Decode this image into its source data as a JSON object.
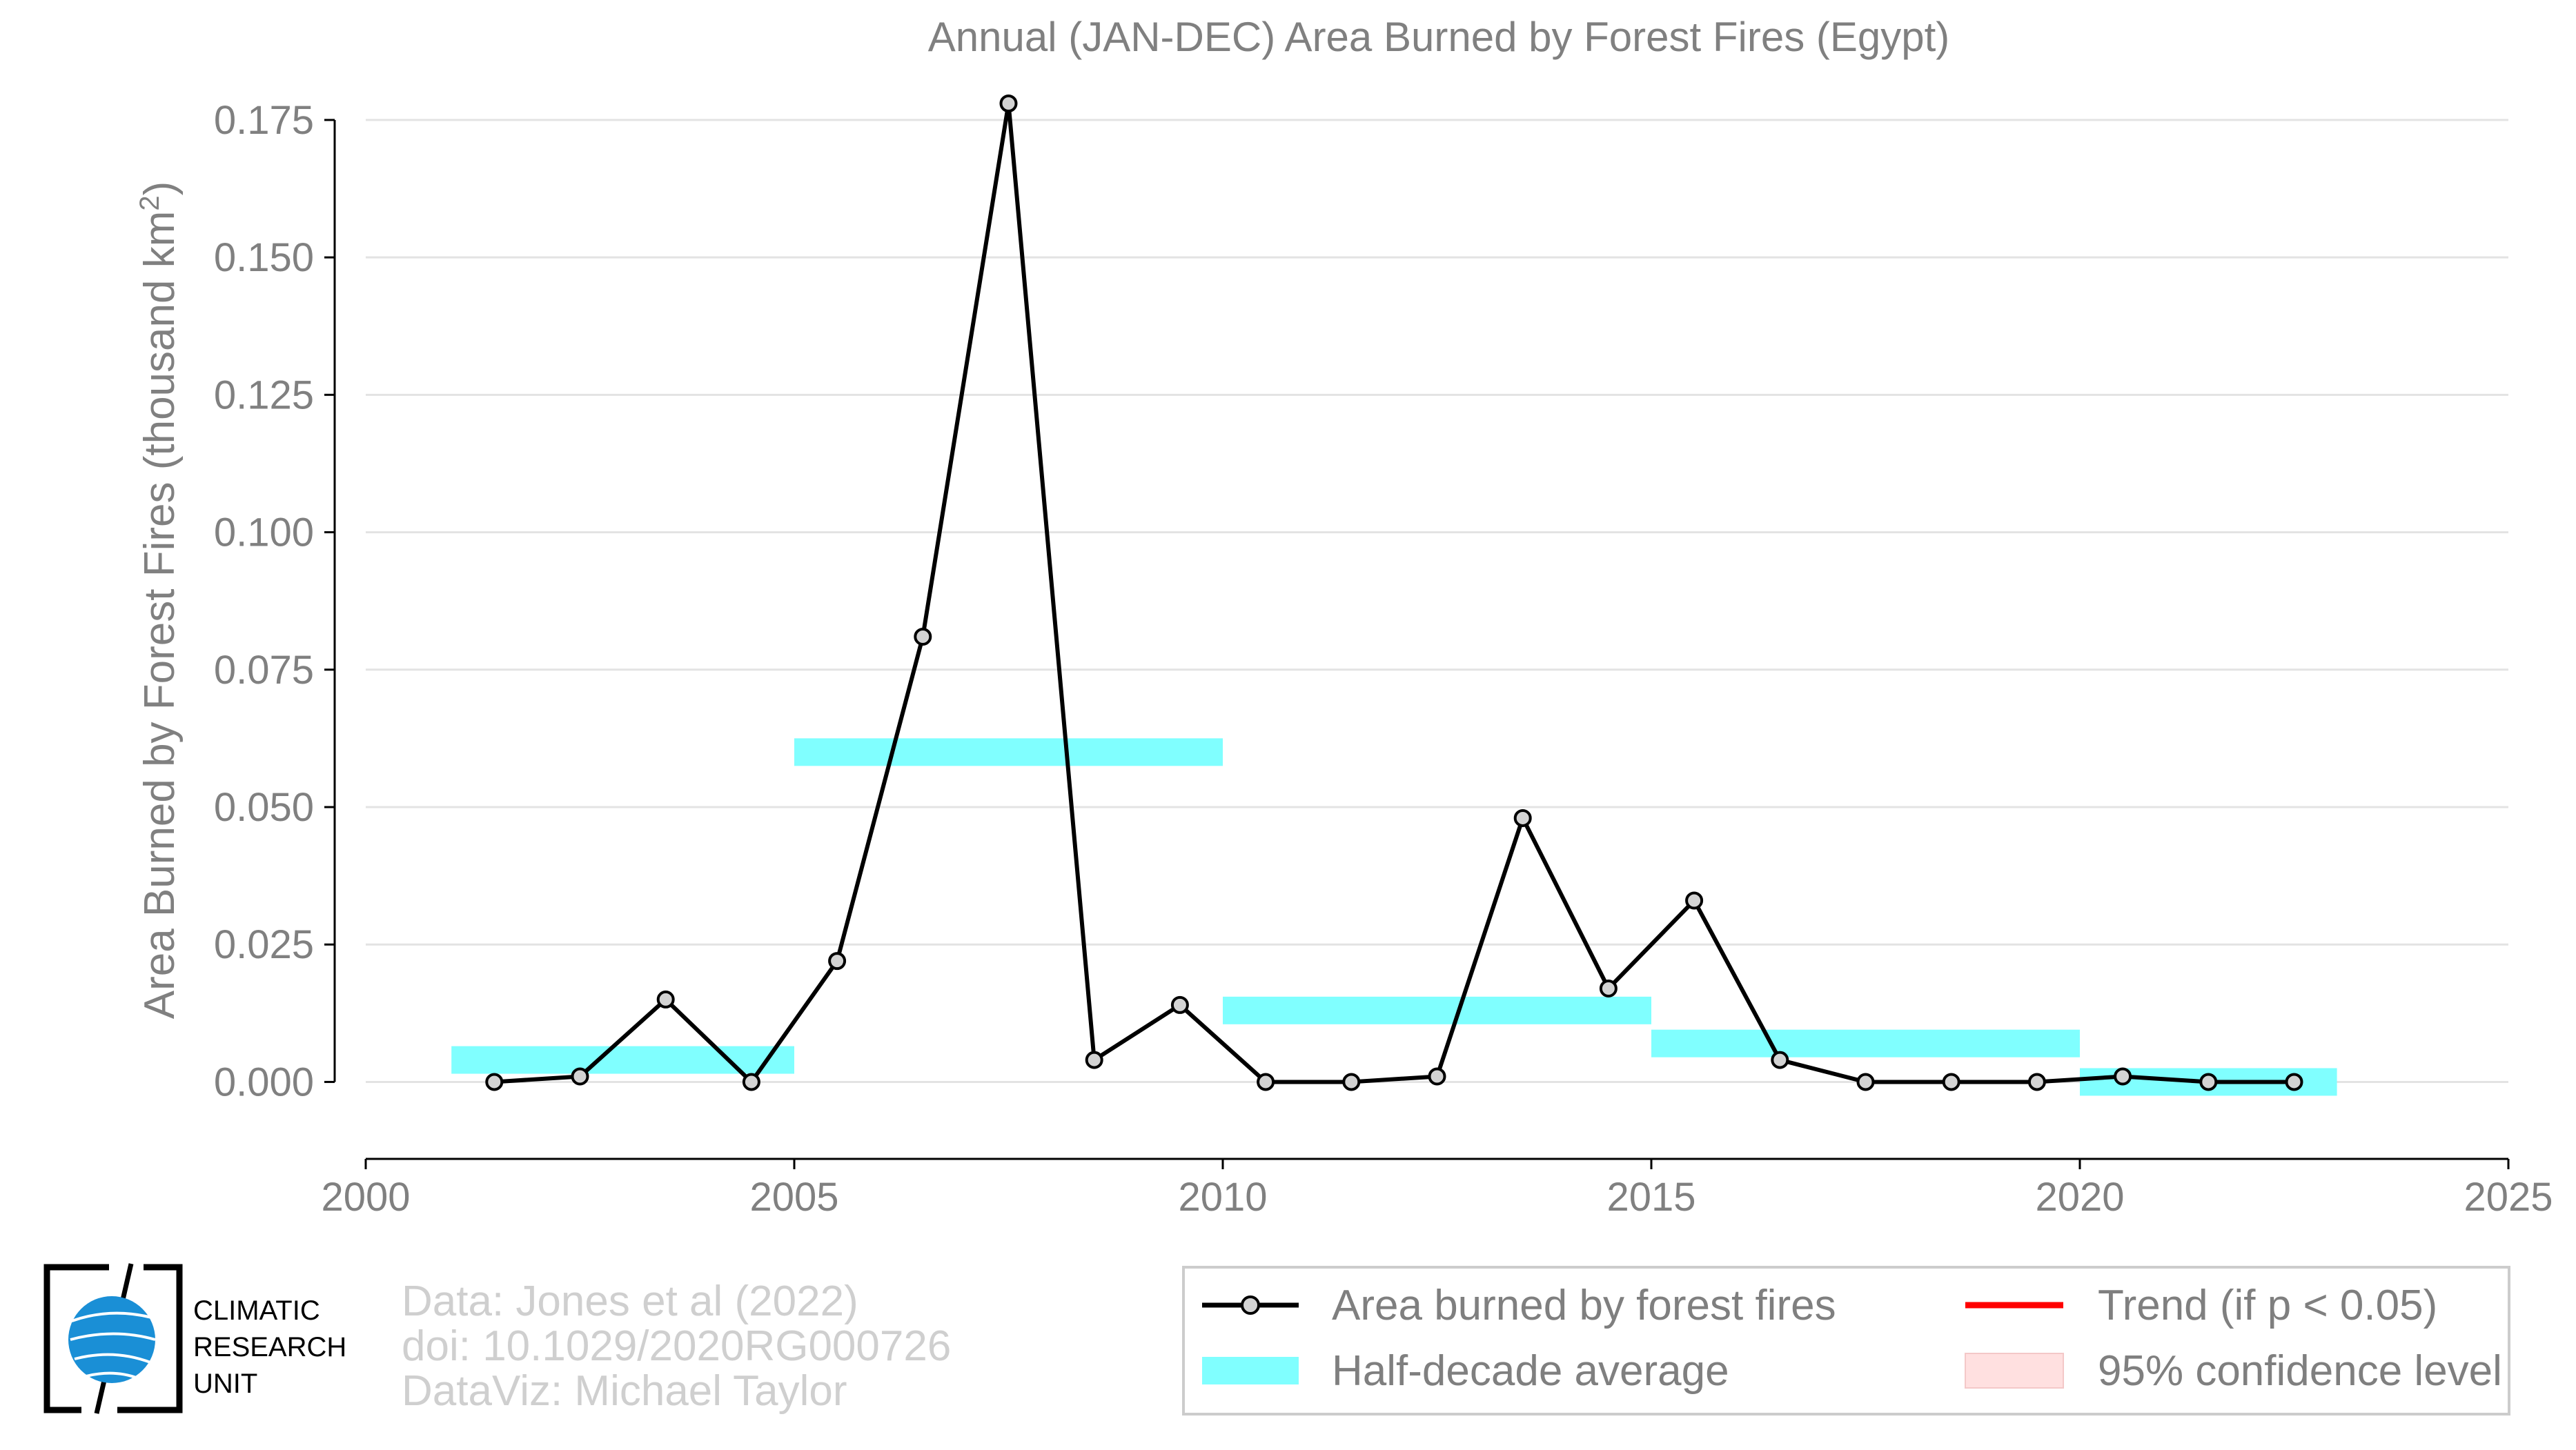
{
  "chart_data": {
    "type": "line",
    "title": "Annual (JAN-DEC) Area Burned by Forest Fires (Egypt)",
    "ylabel_main": "Area Burned by Forest Fires (thousand km",
    "ylabel_sup": "2",
    "ylabel_close": ")",
    "xlabel": "",
    "xlim": [
      2000,
      2025
    ],
    "ylim": [
      -0.014,
      0.178
    ],
    "x_ticks": [
      "2000",
      "2005",
      "2010",
      "2015",
      "2020",
      "2025"
    ],
    "y_ticks": [
      "0.000",
      "0.025",
      "0.050",
      "0.075",
      "0.100",
      "0.125",
      "0.150",
      "0.175"
    ],
    "grid": "horizontal",
    "legend_placement": "bottom-right",
    "series": [
      {
        "name": "Area burned by forest fires",
        "type": "line",
        "color": "#000000",
        "marker_fill": "#d3d3d3",
        "points": [
          {
            "x": 2001.5,
            "y": 0.0
          },
          {
            "x": 2002.5,
            "y": 0.001
          },
          {
            "x": 2003.5,
            "y": 0.015
          },
          {
            "x": 2004.5,
            "y": 0.0
          },
          {
            "x": 2005.5,
            "y": 0.022
          },
          {
            "x": 2006.5,
            "y": 0.081
          },
          {
            "x": 2007.5,
            "y": 0.178
          },
          {
            "x": 2008.5,
            "y": 0.004
          },
          {
            "x": 2009.5,
            "y": 0.014
          },
          {
            "x": 2010.5,
            "y": 0.0
          },
          {
            "x": 2011.5,
            "y": 0.0
          },
          {
            "x": 2012.5,
            "y": 0.001
          },
          {
            "x": 2013.5,
            "y": 0.048
          },
          {
            "x": 2014.5,
            "y": 0.017
          },
          {
            "x": 2015.5,
            "y": 0.033
          },
          {
            "x": 2016.5,
            "y": 0.004
          },
          {
            "x": 2017.5,
            "y": 0.0
          },
          {
            "x": 2018.5,
            "y": 0.0
          },
          {
            "x": 2019.5,
            "y": 0.0
          },
          {
            "x": 2020.5,
            "y": 0.001
          },
          {
            "x": 2021.5,
            "y": 0.0
          },
          {
            "x": 2022.5,
            "y": 0.0
          }
        ]
      },
      {
        "name": "Half-decade average",
        "type": "bands",
        "color": "#80ffff",
        "segments": [
          {
            "x0": 2001,
            "x1": 2005,
            "y": 0.004
          },
          {
            "x0": 2005,
            "x1": 2010,
            "y": 0.06
          },
          {
            "x0": 2010,
            "x1": 2015,
            "y": 0.013
          },
          {
            "x0": 2015,
            "x1": 2020,
            "y": 0.007
          },
          {
            "x0": 2020,
            "x1": 2023,
            "y": 0.0
          }
        ]
      }
    ],
    "legend": [
      {
        "label": "Area burned by forest fires",
        "kind": "line-marker",
        "color": "#000000"
      },
      {
        "label": "Trend (if p < 0.05)",
        "kind": "line",
        "color": "#ff0000"
      },
      {
        "label": "Half-decade average",
        "kind": "band",
        "color": "#80ffff"
      },
      {
        "label": "95% confidence level",
        "kind": "band",
        "color": "#ffe0e0"
      }
    ]
  },
  "credits": [
    "Data: Jones et al (2022)",
    "doi: 10.1029/2020RG000726",
    "DataViz: Michael Taylor"
  ],
  "logo": {
    "lines": [
      "CLIMATIC",
      "RESEARCH",
      "UNIT"
    ],
    "globe_color": "#1a8fd6"
  }
}
